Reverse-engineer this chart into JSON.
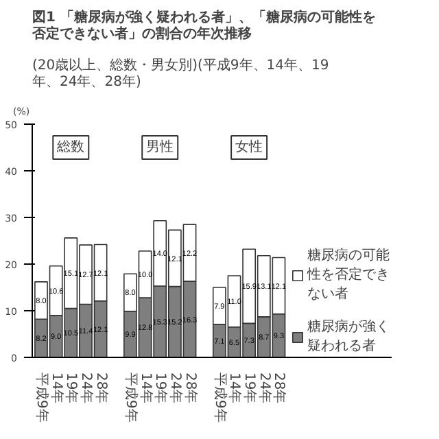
{
  "chart_data": [
    {
      "type": "bar",
      "stacked": true,
      "title": "図1 「糖尿病が強く疑われる者」、「糖尿病の可能性を否定できない者」の割合の年次推移",
      "subtitle": "(20歳以上、総数・男女別)(平成9年、14年、19年、24年、28年)",
      "ylabel": "(%)",
      "annotations": [
        "総数"
      ],
      "categories": [
        "平成9年",
        "14年",
        "19年",
        "24年",
        "28年"
      ],
      "ylim": [
        0,
        50
      ],
      "yticks": [
        0,
        10,
        20,
        30,
        40,
        50
      ],
      "series": [
        {
          "color": "#7f7f7f",
          "values": [
            8.2,
            9.0,
            10.5,
            11.4,
            12.1
          ],
          "value_labels": [
            "8.2",
            "9.0",
            "10.5",
            "11.4",
            "12.1"
          ]
        },
        {
          "color": "#ffffff",
          "values": [
            8.0,
            10.6,
            15.1,
            12.7,
            12.1
          ],
          "value_labels": [
            "8.0",
            "10.6",
            "15.1",
            "12.7",
            "12.1"
          ]
        }
      ]
    },
    {
      "type": "bar",
      "stacked": true,
      "annotations": [
        "男性"
      ],
      "categories": [
        "平成9年",
        "14年",
        "19年",
        "24年",
        "28年"
      ],
      "ylim": [
        0,
        50
      ],
      "yticks": [
        0,
        10,
        20,
        30,
        40,
        50
      ],
      "tick_labels": "x",
      "series": [
        {
          "color": "#7f7f7f",
          "values": [
            9.9,
            12.8,
            15.3,
            15.2,
            16.3
          ],
          "value_labels": [
            "9.9",
            "12.8",
            "15.3",
            "15.2",
            "16.3"
          ]
        },
        {
          "color": "#ffffff",
          "values": [
            8.0,
            10.0,
            14.0,
            12.1,
            12.2
          ],
          "value_labels": [
            "8.0",
            "10.0",
            "14.0",
            "12.1",
            "12.2"
          ]
        }
      ]
    },
    {
      "type": "bar",
      "stacked": true,
      "annotations": [
        "女性"
      ],
      "categories": [
        "平成9年",
        "14年",
        "19年",
        "24年",
        "28年"
      ],
      "ylim": [
        0,
        50
      ],
      "yticks": [
        0,
        10,
        20,
        30,
        40,
        50
      ],
      "tick_labels": "x",
      "legend": "right",
      "series": [
        {
          "name": "糖尿病が強く疑われる者",
          "color": "#7f7f7f",
          "values": [
            7.1,
            6.5,
            7.3,
            8.7,
            9.3
          ],
          "value_labels": [
            "7.1",
            "6.5",
            "7.3",
            "8.7",
            "9.3"
          ]
        },
        {
          "name": "糖尿病の可能性を否定できない者",
          "color": "#ffffff",
          "values": [
            7.9,
            11.0,
            15.9,
            13.1,
            12.1
          ],
          "value_labels": [
            "7.9",
            "11.0",
            "15.9",
            "13.1",
            "12.1"
          ]
        }
      ]
    }
  ]
}
